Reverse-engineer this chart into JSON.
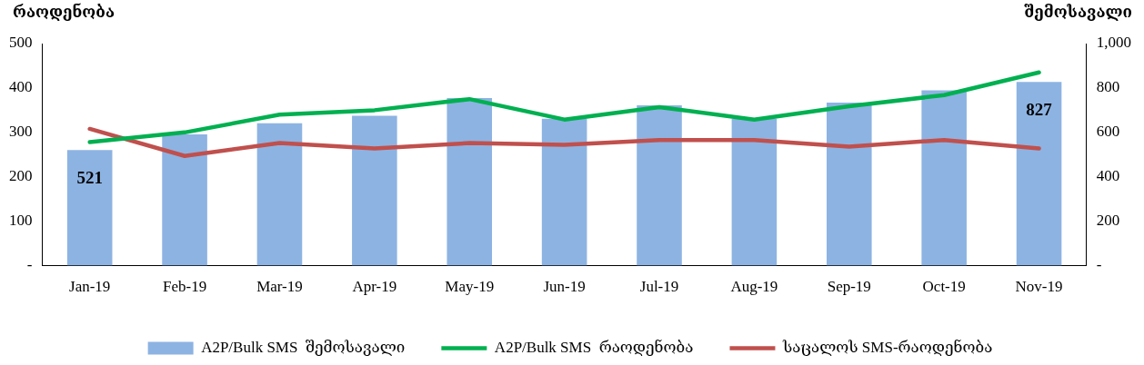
{
  "chart_data": {
    "type": "bar",
    "ylabel": "რაოდენობა",
    "y2label": "შემოსავალი",
    "categories": [
      "Jan-19",
      "Feb-19",
      "Mar-19",
      "Apr-19",
      "May-19",
      "Jun-19",
      "Jul-19",
      "Aug-19",
      "Sep-19",
      "Oct-19",
      "Nov-19"
    ],
    "series": [
      {
        "name": "A2P/Bulk SMS  შემოსავალი",
        "axis": "y2",
        "color": "#8db3e2",
        "values": [
          521,
          591,
          641,
          675,
          755,
          662,
          722,
          662,
          734,
          789,
          827
        ],
        "value_labels": [
          "521",
          null,
          null,
          null,
          null,
          null,
          null,
          null,
          null,
          null,
          "827"
        ]
      },
      {
        "name": "A2P/Bulk SMS  რაოდენობა",
        "type": "line",
        "color": "#00b050",
        "values": [
          278,
          300,
          340,
          350,
          375,
          329,
          357,
          329,
          359,
          384,
          435
        ]
      },
      {
        "name": "საცალოს SMS-რაოდენობა",
        "type": "line",
        "color": "#c0504d",
        "values": [
          308,
          247,
          276,
          264,
          276,
          272,
          283,
          283,
          268,
          283,
          264
        ]
      }
    ],
    "ylim": [
      0,
      500
    ],
    "yticks": [
      {
        "value": 0,
        "label": "-"
      },
      100,
      200,
      300,
      400,
      500
    ],
    "y2lim": [
      0,
      1000
    ],
    "y2ticks": [
      {
        "value": 0,
        "label": "-"
      },
      200,
      400,
      600,
      800,
      {
        "value": 1000,
        "label": "1,000"
      }
    ],
    "grid": false,
    "legend": "bottom",
    "marker": "none",
    "line_style": "solid"
  }
}
